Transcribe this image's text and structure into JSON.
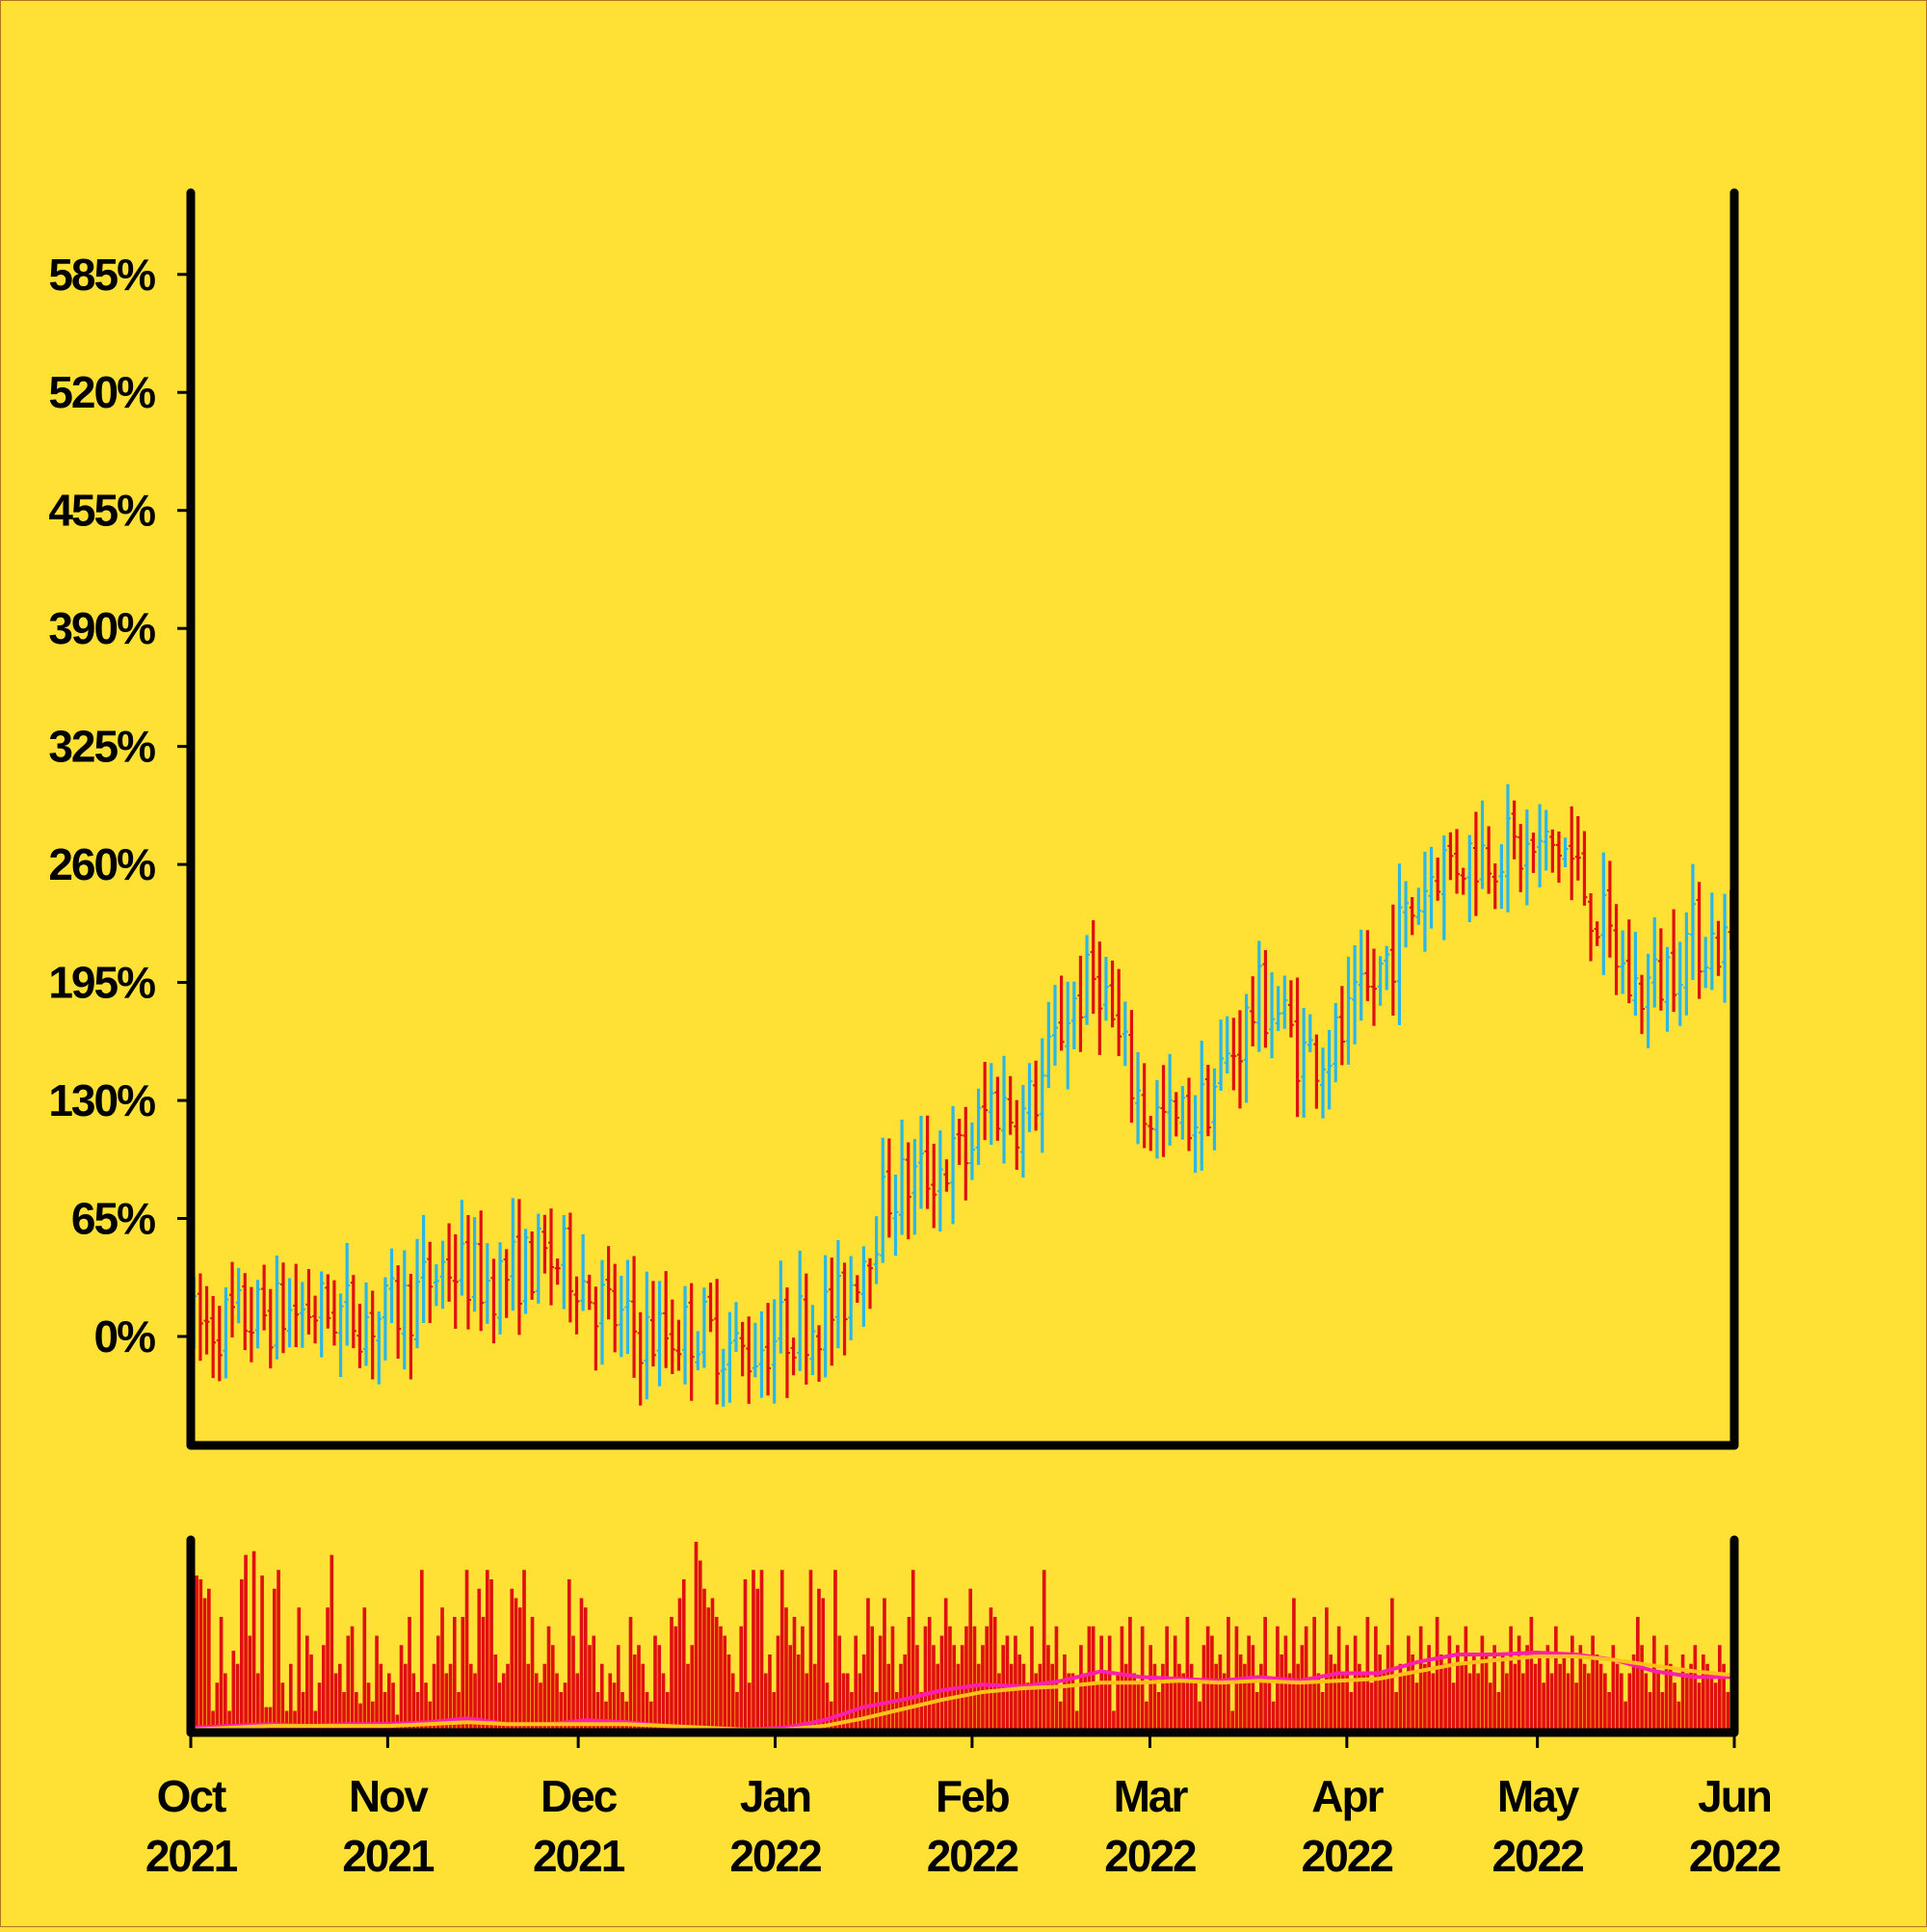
{
  "chart_data": {
    "type": "ohlc",
    "title": "",
    "xlabel": "",
    "ylabel": "",
    "y_axis_format": "percent",
    "ylim": [
      -60,
      630
    ],
    "y_ticks": [
      {
        "value": 0,
        "label": "0%"
      },
      {
        "value": 65,
        "label": "65%"
      },
      {
        "value": 130,
        "label": "130%"
      },
      {
        "value": 195,
        "label": "195%"
      },
      {
        "value": 260,
        "label": "260%"
      },
      {
        "value": 325,
        "label": "325%"
      },
      {
        "value": 390,
        "label": "390%"
      },
      {
        "value": 455,
        "label": "455%"
      },
      {
        "value": 520,
        "label": "520%"
      },
      {
        "value": 585,
        "label": "585%"
      }
    ],
    "x_range": [
      "2021-10-01",
      "2022-06-01"
    ],
    "x_ticks": [
      {
        "date": "2021-10-01",
        "month": "Oct",
        "year": "2021"
      },
      {
        "date": "2021-11-01",
        "month": "Nov",
        "year": "2021"
      },
      {
        "date": "2021-12-01",
        "month": "Dec",
        "year": "2021"
      },
      {
        "date": "2022-01-01",
        "month": "Jan",
        "year": "2022"
      },
      {
        "date": "2022-02-01",
        "month": "Feb",
        "year": "2022"
      },
      {
        "date": "2022-03-01",
        "month": "Mar",
        "year": "2022"
      },
      {
        "date": "2022-04-01",
        "month": "Apr",
        "year": "2022"
      },
      {
        "date": "2022-05-01",
        "month": "May",
        "year": "2022"
      },
      {
        "date": "2022-06-01",
        "month": "Jun",
        "year": "2022"
      }
    ],
    "close_path": [
      [
        "2021-10-01",
        5
      ],
      [
        "2021-10-10",
        10
      ],
      [
        "2021-10-20",
        15
      ],
      [
        "2021-10-31",
        10
      ],
      [
        "2021-11-05",
        20
      ],
      [
        "2021-11-10",
        40
      ],
      [
        "2021-11-17",
        30
      ],
      [
        "2021-11-25",
        42
      ],
      [
        "2021-11-30",
        40
      ],
      [
        "2021-12-03",
        25
      ],
      [
        "2021-12-08",
        5
      ],
      [
        "2021-12-13",
        0
      ],
      [
        "2021-12-20",
        5
      ],
      [
        "2021-12-27",
        -10
      ],
      [
        "2022-01-03",
        5
      ],
      [
        "2022-01-07",
        10
      ],
      [
        "2022-01-11",
        15
      ],
      [
        "2022-01-14",
        40
      ],
      [
        "2022-01-19",
        80
      ],
      [
        "2022-01-25",
        90
      ],
      [
        "2022-01-31",
        100
      ],
      [
        "2022-02-04",
        130
      ],
      [
        "2022-02-09",
        120
      ],
      [
        "2022-02-12",
        140
      ],
      [
        "2022-02-16",
        180
      ],
      [
        "2022-02-21",
        200
      ],
      [
        "2022-02-24",
        160
      ],
      [
        "2022-02-28",
        125
      ],
      [
        "2022-03-05",
        115
      ],
      [
        "2022-03-09",
        125
      ],
      [
        "2022-03-13",
        150
      ],
      [
        "2022-03-18",
        185
      ],
      [
        "2022-03-21",
        180
      ],
      [
        "2022-03-25",
        155
      ],
      [
        "2022-03-30",
        160
      ],
      [
        "2022-04-04",
        185
      ],
      [
        "2022-04-09",
        220
      ],
      [
        "2022-04-15",
        260
      ],
      [
        "2022-04-20",
        265
      ],
      [
        "2022-04-25",
        270
      ],
      [
        "2022-04-30",
        265
      ],
      [
        "2022-05-05",
        270
      ],
      [
        "2022-05-08",
        250
      ],
      [
        "2022-05-12",
        220
      ],
      [
        "2022-05-16",
        190
      ],
      [
        "2022-05-20",
        195
      ],
      [
        "2022-05-25",
        220
      ],
      [
        "2022-06-01",
        215
      ]
    ],
    "bar_colors": {
      "up": "#29B6E8",
      "down": "#E0100F"
    },
    "volume": {
      "type": "bar",
      "values": [
        0.12,
        0.82,
        0.8,
        0.7,
        0.75,
        0.1,
        0.25,
        0.6,
        0.3,
        0.1,
        0.42,
        0.35,
        0.8,
        0.93,
        0.5,
        0.95,
        0.3,
        0.82,
        0.12,
        0.12,
        0.75,
        0.85,
        0.25,
        0.1,
        0.35,
        0.1,
        0.65,
        0.2,
        0.5,
        0.4,
        0.1,
        0.25,
        0.45,
        0.65,
        0.93,
        0.3,
        0.35,
        0.2,
        0.5,
        0.55,
        0.2,
        0.14,
        0.65,
        0.25,
        0.15,
        0.5,
        0.35,
        0.2,
        0.3,
        0.25,
        0.08,
        0.45,
        0.35,
        0.6,
        0.3,
        0.2,
        0.85,
        0.25,
        0.15,
        0.35,
        0.5,
        0.65,
        0.3,
        0.35,
        0.6,
        0.2,
        0.6,
        0.85,
        0.35,
        0.3,
        0.75,
        0.6,
        0.85,
        0.8,
        0.4,
        0.25,
        0.3,
        0.35,
        0.75,
        0.7,
        0.65,
        0.85,
        0.35,
        0.6,
        0.3,
        0.25,
        0.35,
        0.55,
        0.45,
        0.3,
        0.2,
        0.25,
        0.8,
        0.5,
        0.3,
        0.7,
        0.65,
        0.45,
        0.5,
        0.2,
        0.35,
        0.15,
        0.3,
        0.25,
        0.45,
        0.2,
        0.15,
        0.6,
        0.4,
        0.45,
        0.35,
        0.2,
        0.15,
        0.5,
        0.45,
        0.3,
        0.2,
        0.6,
        0.55,
        0.7,
        0.8,
        0.35,
        0.45,
        1.0,
        0.9,
        0.75,
        0.65,
        0.7,
        0.6,
        0.55,
        0.5,
        0.4,
        0.3,
        0.2,
        0.55,
        0.8,
        0.25,
        0.85,
        0.75,
        0.85,
        0.3,
        0.4,
        0.2,
        0.5,
        0.85,
        0.65,
        0.45,
        0.6,
        0.4,
        0.55,
        0.3,
        0.85,
        0.35,
        0.75,
        0.7,
        0.25,
        0.15,
        0.85,
        0.5,
        0.3,
        0.3,
        0.2,
        0.5,
        0.3,
        0.4,
        0.7,
        0.55,
        0.2,
        0.5,
        0.7,
        0.35,
        0.55,
        0.2,
        0.35,
        0.4,
        0.6,
        0.85,
        0.45,
        0.2,
        0.55,
        0.6,
        0.45,
        0.35,
        0.5,
        0.7,
        0.55,
        0.45,
        0.35,
        0.45,
        0.55,
        0.75,
        0.55,
        0.35,
        0.45,
        0.55,
        0.65,
        0.6,
        0.3,
        0.45,
        0.5,
        0.35,
        0.5,
        0.4,
        0.35,
        0.25,
        0.55,
        0.3,
        0.35,
        0.85,
        0.45,
        0.35,
        0.55,
        0.15,
        0.4,
        0.3,
        0.3,
        0.1,
        0.45,
        0.3,
        0.55,
        0.55,
        0.25,
        0.5,
        0.3,
        0.5,
        0.1,
        0.3,
        0.55,
        0.35,
        0.6,
        0.3,
        0.25,
        0.55,
        0.15,
        0.45,
        0.35,
        0.2,
        0.35,
        0.55,
        0.25,
        0.5,
        0.35,
        0.3,
        0.6,
        0.35,
        0.25,
        0.15,
        0.45,
        0.55,
        0.5,
        0.35,
        0.4,
        0.3,
        0.6,
        0.1,
        0.55,
        0.4,
        0.35,
        0.5,
        0.45,
        0.2,
        0.35,
        0.6,
        0.25,
        0.15,
        0.55,
        0.4,
        0.5,
        0.3,
        0.7,
        0.35,
        0.45,
        0.55,
        0.25,
        0.6,
        0.3,
        0.2,
        0.65,
        0.4,
        0.35,
        0.55,
        0.3,
        0.45,
        0.2,
        0.5,
        0.35,
        0.3,
        0.6,
        0.25,
        0.55,
        0.4,
        0.3,
        0.45,
        0.7,
        0.2,
        0.35,
        0.3,
        0.5,
        0.4,
        0.25,
        0.55,
        0.35,
        0.45,
        0.3,
        0.6,
        0.4,
        0.35,
        0.5,
        0.25,
        0.45,
        0.35,
        0.55,
        0.3,
        0.4,
        0.3,
        0.5,
        0.4,
        0.25,
        0.45,
        0.2,
        0.4,
        0.3,
        0.55,
        0.35,
        0.5,
        0.3,
        0.45,
        0.6,
        0.35,
        0.4,
        0.25,
        0.45,
        0.3,
        0.55,
        0.35,
        0.4,
        0.3,
        0.5,
        0.25,
        0.45,
        0.35,
        0.3,
        0.5,
        0.4,
        0.35,
        0.3,
        0.2,
        0.45,
        0.35,
        0.3,
        0.15,
        0.3,
        0.4,
        0.6,
        0.45,
        0.3,
        0.2,
        0.5,
        0.3,
        0.2,
        0.45,
        0.35,
        0.25,
        0.15,
        0.4,
        0.3,
        0.35,
        0.45,
        0.25,
        0.4,
        0.35,
        0.3,
        0.25,
        0.45,
        0.35,
        0.2,
        0.3
      ],
      "ma_fast_color": "#FF1FAF",
      "ma_slow_color": "#FFC21A",
      "ma_fast": [
        0.01,
        0.02,
        0.03,
        0.02,
        0.03,
        0.03,
        0.04,
        0.06,
        0.03,
        0.03,
        0.05,
        0.04,
        0.02,
        0.01,
        0.0,
        0.01,
        0.05,
        0.12,
        0.16,
        0.21,
        0.24,
        0.23,
        0.26,
        0.31,
        0.28,
        0.27,
        0.26,
        0.28,
        0.26,
        0.3,
        0.3,
        0.36,
        0.4,
        0.4,
        0.41,
        0.4,
        0.37,
        0.31,
        0.28,
        0.28
      ],
      "ma_slow": [
        0.0,
        0.01,
        0.02,
        0.02,
        0.02,
        0.02,
        0.03,
        0.04,
        0.03,
        0.03,
        0.03,
        0.03,
        0.02,
        0.01,
        0.0,
        0.0,
        0.02,
        0.06,
        0.11,
        0.16,
        0.2,
        0.22,
        0.23,
        0.25,
        0.25,
        0.26,
        0.25,
        0.26,
        0.25,
        0.26,
        0.27,
        0.31,
        0.35,
        0.37,
        0.39,
        0.39,
        0.37,
        0.34,
        0.31,
        0.29
      ]
    }
  }
}
